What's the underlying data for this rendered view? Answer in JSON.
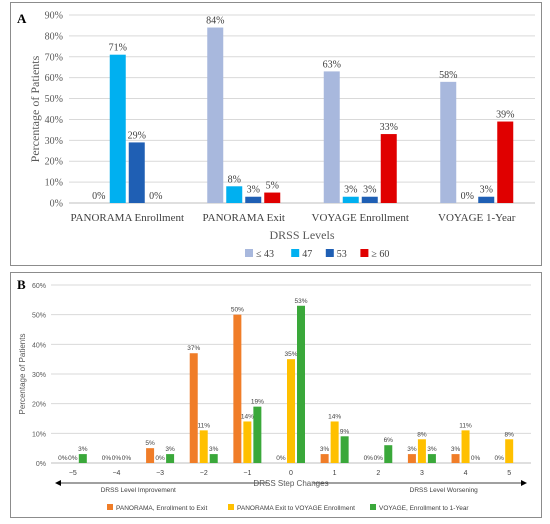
{
  "chart_data": [
    {
      "type": "bar",
      "panel_label": "A",
      "xlabel": "DRSS Levels",
      "ylabel": "Percentage of Patients",
      "ylim": [
        0,
        90
      ],
      "yticks": [
        "0%",
        "10%",
        "20%",
        "30%",
        "40%",
        "50%",
        "60%",
        "70%",
        "80%",
        "90%"
      ],
      "categories": [
        "PANORAMA Enrollment",
        "PANORAMA Exit",
        "VOYAGE Enrollment",
        "VOYAGE 1-Year"
      ],
      "series": [
        {
          "name": "≤ 43",
          "color": "#a8b8dd",
          "values": [
            0,
            84,
            63,
            58
          ]
        },
        {
          "name": "47",
          "color": "#00b0f0",
          "values": [
            71,
            8,
            3,
            0
          ]
        },
        {
          "name": "53",
          "color": "#1f5fb4",
          "values": [
            29,
            3,
            3,
            3
          ]
        },
        {
          "name": "≥ 60",
          "color": "#e00000",
          "values": [
            0,
            5,
            33,
            39
          ]
        }
      ],
      "data_labels": [
        [
          "0%",
          "84%",
          "63%",
          "58%"
        ],
        [
          "71%",
          "8%",
          "3%",
          "0%"
        ],
        [
          "29%",
          "3%",
          "3%",
          "3%"
        ],
        [
          "0%",
          "5%",
          "33%",
          "39%"
        ]
      ],
      "legend_position": "bottom",
      "grid": true
    },
    {
      "type": "bar",
      "panel_label": "B",
      "xlabel": "DRSS Step Changes",
      "ylabel": "Percentage of Patients",
      "ylim": [
        0,
        60
      ],
      "yticks": [
        "0%",
        "10%",
        "20%",
        "30%",
        "40%",
        "50%",
        "60%"
      ],
      "categories": [
        "−5",
        "−4",
        "−3",
        "−2",
        "−1",
        "0",
        "1",
        "2",
        "3",
        "4",
        "5"
      ],
      "series": [
        {
          "name": "PANORAMA, Enrollment to Exit",
          "color": "#f07d28",
          "values": [
            0,
            0,
            5,
            37,
            50,
            0,
            3,
            0,
            3,
            3,
            0
          ]
        },
        {
          "name": "PANORAMA Exit to VOYAGE Enrollment",
          "color": "#ffc000",
          "values": [
            0,
            0,
            0,
            11,
            14,
            35,
            14,
            0,
            8,
            11,
            8
          ]
        },
        {
          "name": "VOYAGE, Enrollment to 1-Year",
          "color": "#3aa83a",
          "values": [
            3,
            0,
            3,
            3,
            19,
            53,
            9,
            6,
            3,
            0,
            null
          ]
        }
      ],
      "data_labels": [
        [
          "0%",
          "0%",
          "5%",
          "37%",
          "50%",
          "0%",
          "3%",
          "0%",
          "3%",
          "3%",
          "0%"
        ],
        [
          "0%",
          "0%",
          "0%",
          "11%",
          "14%",
          "35%",
          "14%",
          "0%",
          "8%",
          "11%",
          "8%"
        ],
        [
          "3%",
          "0%",
          "3%",
          "3%",
          "19%",
          "53%",
          "9%",
          "6%",
          "3%",
          "0%",
          ""
        ]
      ],
      "annotations": [
        "DRSS Level Improvement",
        "DRSS Level Worsening"
      ],
      "legend_position": "bottom",
      "grid": true
    }
  ]
}
